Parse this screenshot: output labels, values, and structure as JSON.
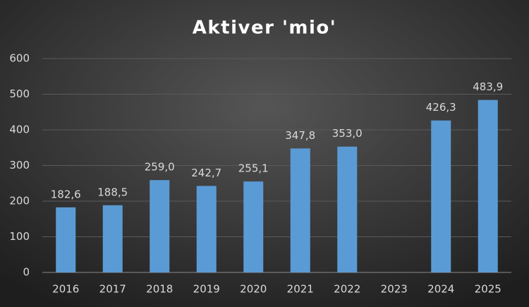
{
  "chart_data": {
    "type": "bar",
    "title": "Aktiver 'mio'",
    "categories": [
      "2016",
      "2017",
      "2018",
      "2019",
      "2020",
      "2021",
      "2022",
      "2023",
      "2024",
      "2025"
    ],
    "values": [
      182.6,
      188.5,
      259.0,
      242.7,
      255.1,
      347.8,
      353.0,
      null,
      426.3,
      483.9
    ],
    "value_labels": [
      "182,6",
      "188,5",
      "259,0",
      "242,7",
      "255,1",
      "347,8",
      "353,0",
      null,
      "426,3",
      "483,9"
    ],
    "color": "#5b9bd5",
    "ylim": [
      0,
      600
    ],
    "yticks": [
      0,
      100,
      200,
      300,
      400,
      500,
      600
    ],
    "grid": true
  }
}
